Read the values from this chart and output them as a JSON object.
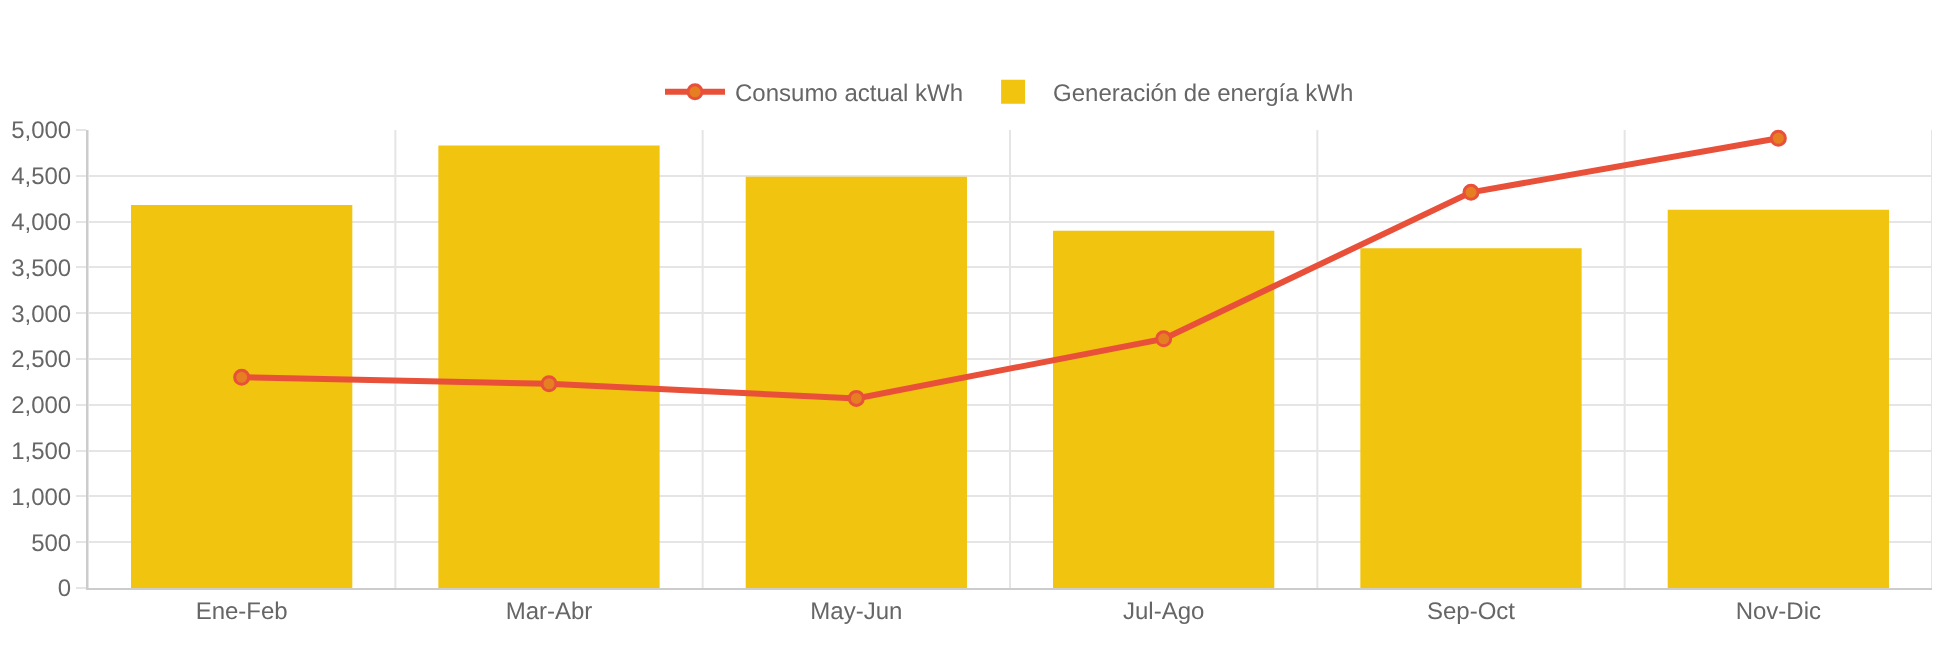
{
  "chart_data": {
    "type": "bar",
    "categories": [
      "Ene-Feb",
      "Mar-Abr",
      "May-Jun",
      "Jul-Ago",
      "Sep-Oct",
      "Nov-Dic"
    ],
    "series": [
      {
        "name": "Consumo actual kWh",
        "type": "line",
        "color": "#e8503a",
        "values": [
          2300,
          2230,
          2070,
          2720,
          4320,
          4910
        ]
      },
      {
        "name": "Generación de energía kWh",
        "color": "#f1c40f",
        "values": [
          4180,
          4830,
          4490,
          3900,
          3710,
          4130
        ]
      }
    ],
    "ylim": [
      0,
      5000
    ],
    "yticks": [
      {
        "value": 0,
        "label": "0"
      },
      {
        "value": 500,
        "label": "500"
      },
      {
        "value": 1000,
        "label": "1,000"
      },
      {
        "value": 1500,
        "label": "1,500"
      },
      {
        "value": 2000,
        "label": "2,000"
      },
      {
        "value": 2500,
        "label": "2,500"
      },
      {
        "value": 3000,
        "label": "3,000"
      },
      {
        "value": 3500,
        "label": "3,500"
      },
      {
        "value": 4000,
        "label": "4,000"
      },
      {
        "value": 4500,
        "label": "4,500"
      },
      {
        "value": 5000,
        "label": "5,000"
      }
    ],
    "grid": true,
    "legend": "top",
    "marker": "circle",
    "line_style": "solid"
  }
}
